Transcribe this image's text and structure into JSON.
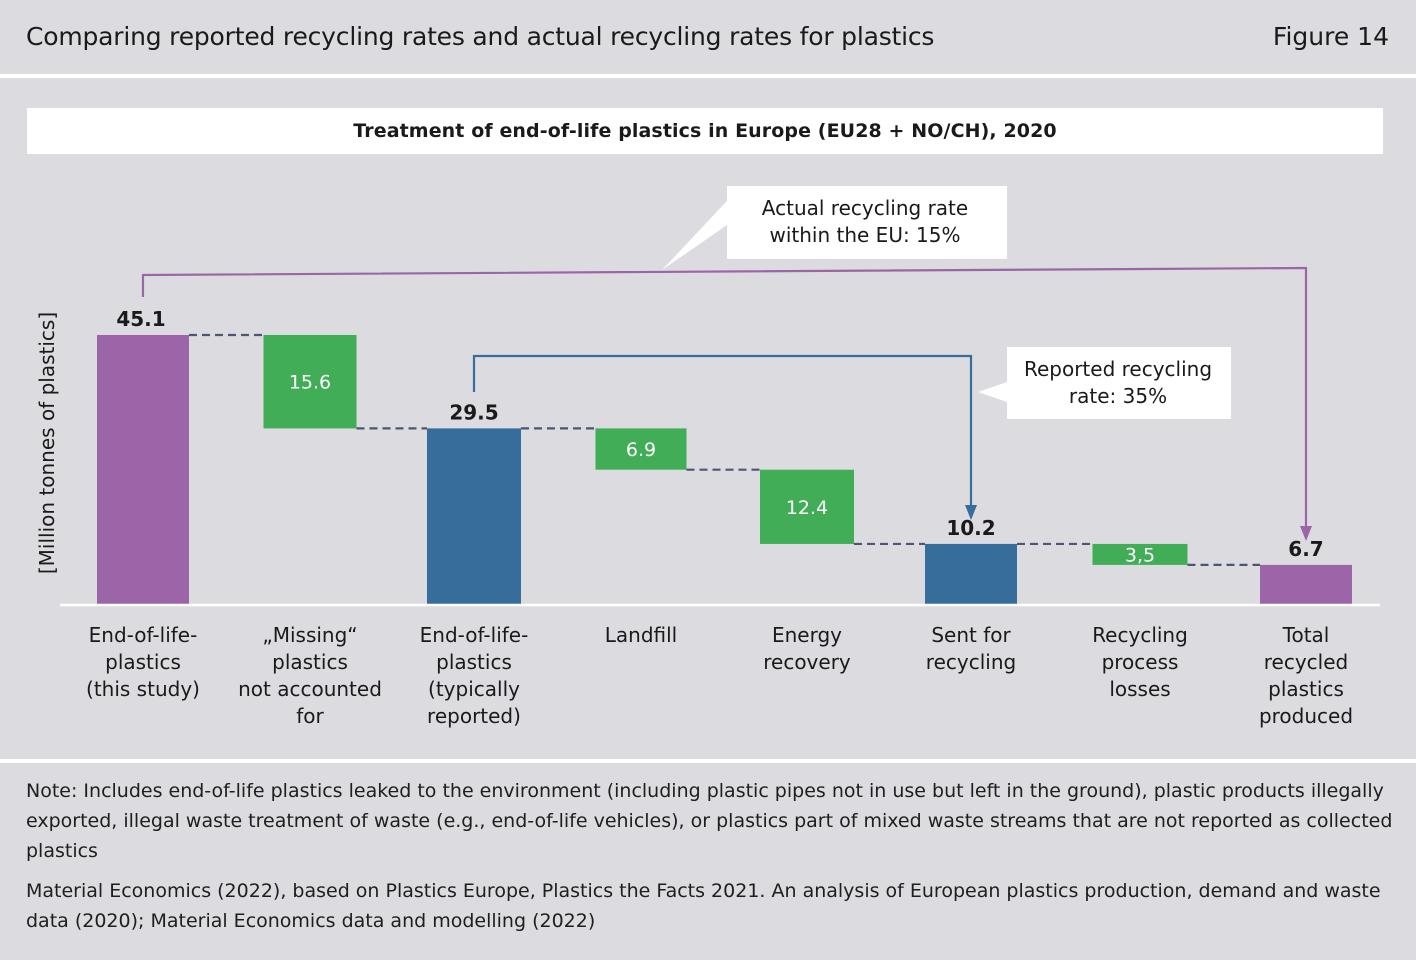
{
  "header": {
    "title": "Comparing reported recycling rates and actual recycling rates for plastics",
    "figure_label": "Figure 14"
  },
  "colors": {
    "purple": "#9b65a8",
    "green": "#41ad56",
    "blue": "#366d9b",
    "dash": "#4a5672",
    "bracket_purple": "#9b65a8",
    "bracket_blue": "#366d9b"
  },
  "chart_data": {
    "type": "bar",
    "subtype": "waterfall",
    "title": "Treatment of end-of-life plastics in Europe (EU28 + NO/CH), 2020",
    "ylabel": "[Million tonnes of plastics]",
    "ylim": [
      0,
      45.1
    ],
    "grid": false,
    "categories": [
      [
        "End-of-life-",
        "plastics",
        "(this study)"
      ],
      [
        "„Missing“",
        "plastics",
        "not accounted",
        "for"
      ],
      [
        "End-of-life-",
        "plastics",
        "(typically",
        "reported)"
      ],
      [
        "Landfill"
      ],
      [
        "Energy",
        "recovery"
      ],
      [
        "Sent for",
        "recycling"
      ],
      [
        "Recycling",
        "process",
        "losses"
      ],
      [
        "Total",
        "recycled",
        "plastics",
        "produced"
      ]
    ],
    "bars": [
      {
        "label": "45.1",
        "value": 45.1,
        "kind": "total",
        "color": "purple"
      },
      {
        "label": "15.6",
        "value": 15.6,
        "kind": "step",
        "color": "green"
      },
      {
        "label": "29.5",
        "value": 29.5,
        "kind": "total",
        "color": "blue"
      },
      {
        "label": "6.9",
        "value": 6.9,
        "kind": "step",
        "color": "green"
      },
      {
        "label": "12.4",
        "value": 12.4,
        "kind": "step",
        "color": "green"
      },
      {
        "label": "10.2",
        "value": 10.2,
        "kind": "total",
        "color": "blue"
      },
      {
        "label": "3,5",
        "value": 3.5,
        "kind": "step",
        "color": "green"
      },
      {
        "label": "6.7",
        "value": 6.7,
        "kind": "total",
        "color": "purple"
      }
    ],
    "annotations": [
      {
        "lines": [
          "Actual recycling rate",
          "within the EU: 15%"
        ],
        "from_bar": 0,
        "to_bar": 7
      },
      {
        "lines": [
          "Reported recycling",
          "rate: 35%"
        ],
        "from_bar": 2,
        "to_bar": 5
      }
    ]
  },
  "notes": {
    "note": "Note: Includes end-of-life plastics leaked to the environment (including plastic pipes not in use but left in the ground), plastic products illegally exported, illegal waste treatment of waste (e.g., end-of-life vehicles), or plastics part of mixed waste streams that are not reported as collected plastics",
    "source": "Material Economics (2022), based on Plastics Europe, Plastics the Facts 2021. An analysis of European plastics production, demand and waste data (2020); Material Economics data and modelling (2022)"
  }
}
